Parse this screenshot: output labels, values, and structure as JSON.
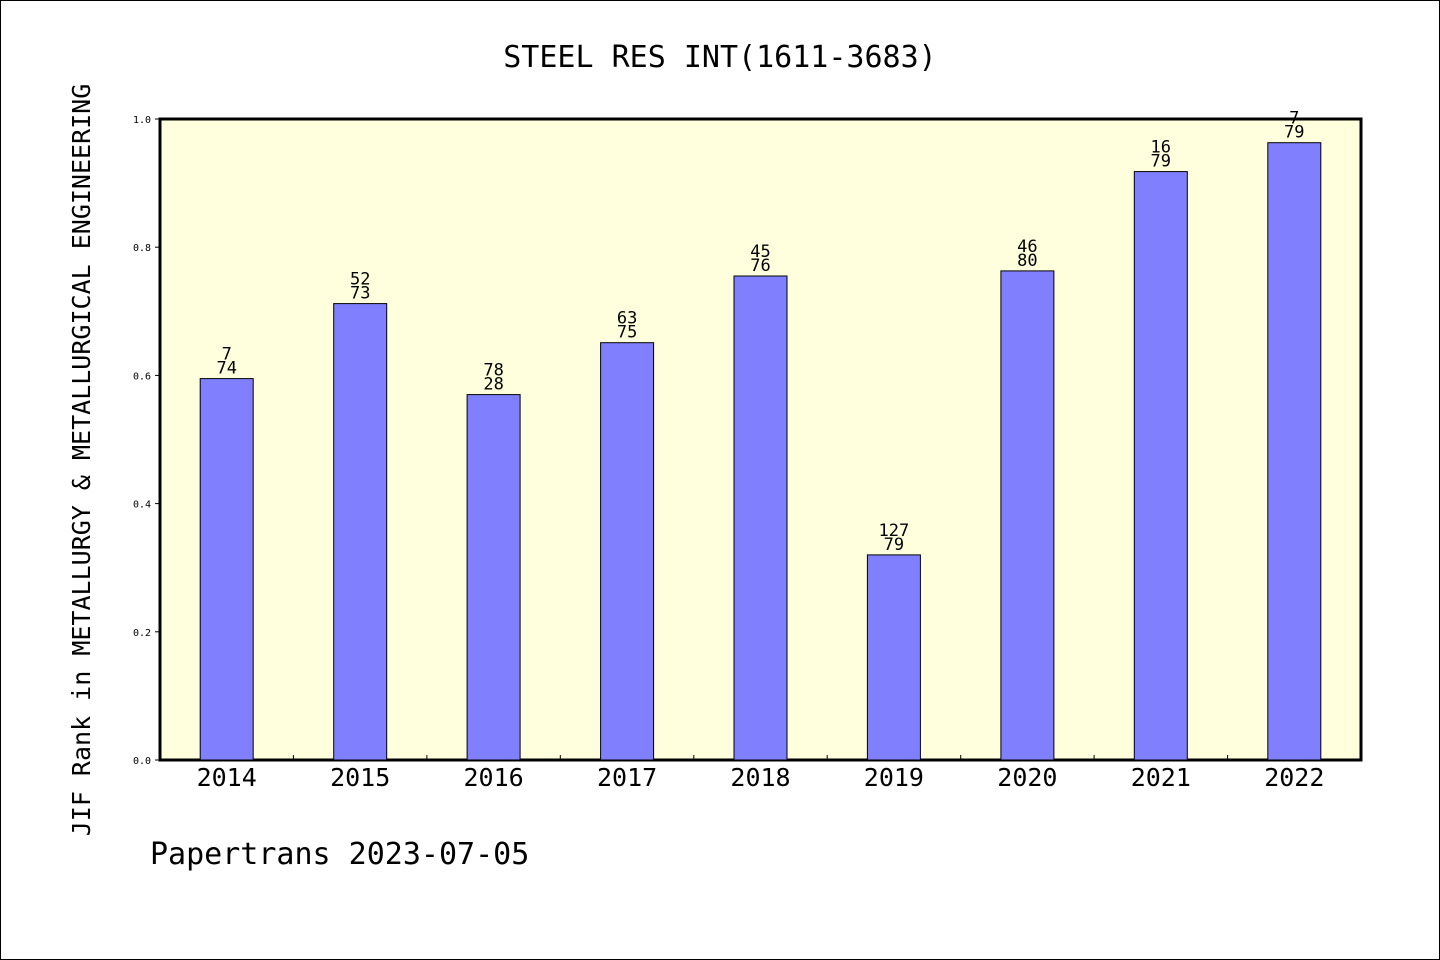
{
  "chart_data": {
    "type": "bar",
    "title": "STEEL RES INT(1611-3683)",
    "xlabel": "",
    "ylabel": "JIF Rank in METALLURGY & METALLURGICAL ENGINEERING",
    "categories": [
      "2014",
      "2015",
      "2016",
      "2017",
      "2018",
      "2019",
      "2020",
      "2021",
      "2022"
    ],
    "values": [
      0.595,
      0.712,
      0.57,
      0.651,
      0.755,
      0.32,
      0.763,
      0.918,
      0.963
    ],
    "label_top": [
      "7",
      "52",
      "78",
      "63",
      "45",
      "127",
      "46",
      "16",
      "7"
    ],
    "label_bottom": [
      "74",
      "73",
      "28",
      "75",
      "76",
      "79",
      "80",
      "79",
      "79"
    ],
    "ylim": [
      0,
      1.0
    ],
    "yticks": [
      "0.0",
      "0.2",
      "0.4",
      "0.6",
      "0.8",
      "1.0"
    ],
    "grid": false,
    "colors": {
      "bar": "#8080ff",
      "plot_background": "#ffffdd",
      "axis": "#000000"
    }
  },
  "footer": {
    "credit": "Papertrans 2023-07-05"
  }
}
